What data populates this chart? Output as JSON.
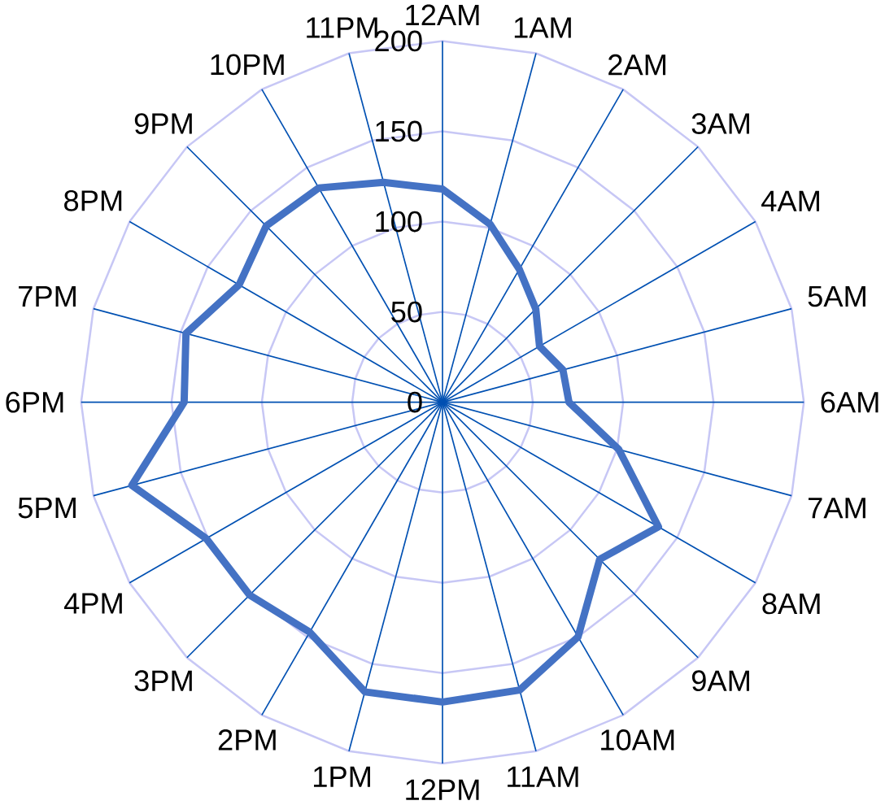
{
  "chart_data": {
    "type": "radar",
    "categories": [
      "12AM",
      "1AM",
      "2AM",
      "3AM",
      "4AM",
      "5AM",
      "6AM",
      "7AM",
      "8AM",
      "9AM",
      "10AM",
      "11AM",
      "12PM",
      "1PM",
      "2PM",
      "3PM",
      "4PM",
      "5PM",
      "6PM",
      "7PM",
      "8PM",
      "9PM",
      "10PM",
      "11PM"
    ],
    "series": [
      {
        "color": "#4472c4",
        "values": [
          118,
          102,
          85,
          73,
          62,
          69,
          70,
          101,
          138,
          123,
          150,
          165,
          166,
          166,
          147,
          151,
          151,
          178,
          143,
          147,
          130,
          138,
          137,
          126
        ]
      }
    ],
    "ylim": [
      0,
      200
    ],
    "yticks": [
      0,
      50,
      100,
      150,
      200
    ],
    "grid": true
  }
}
